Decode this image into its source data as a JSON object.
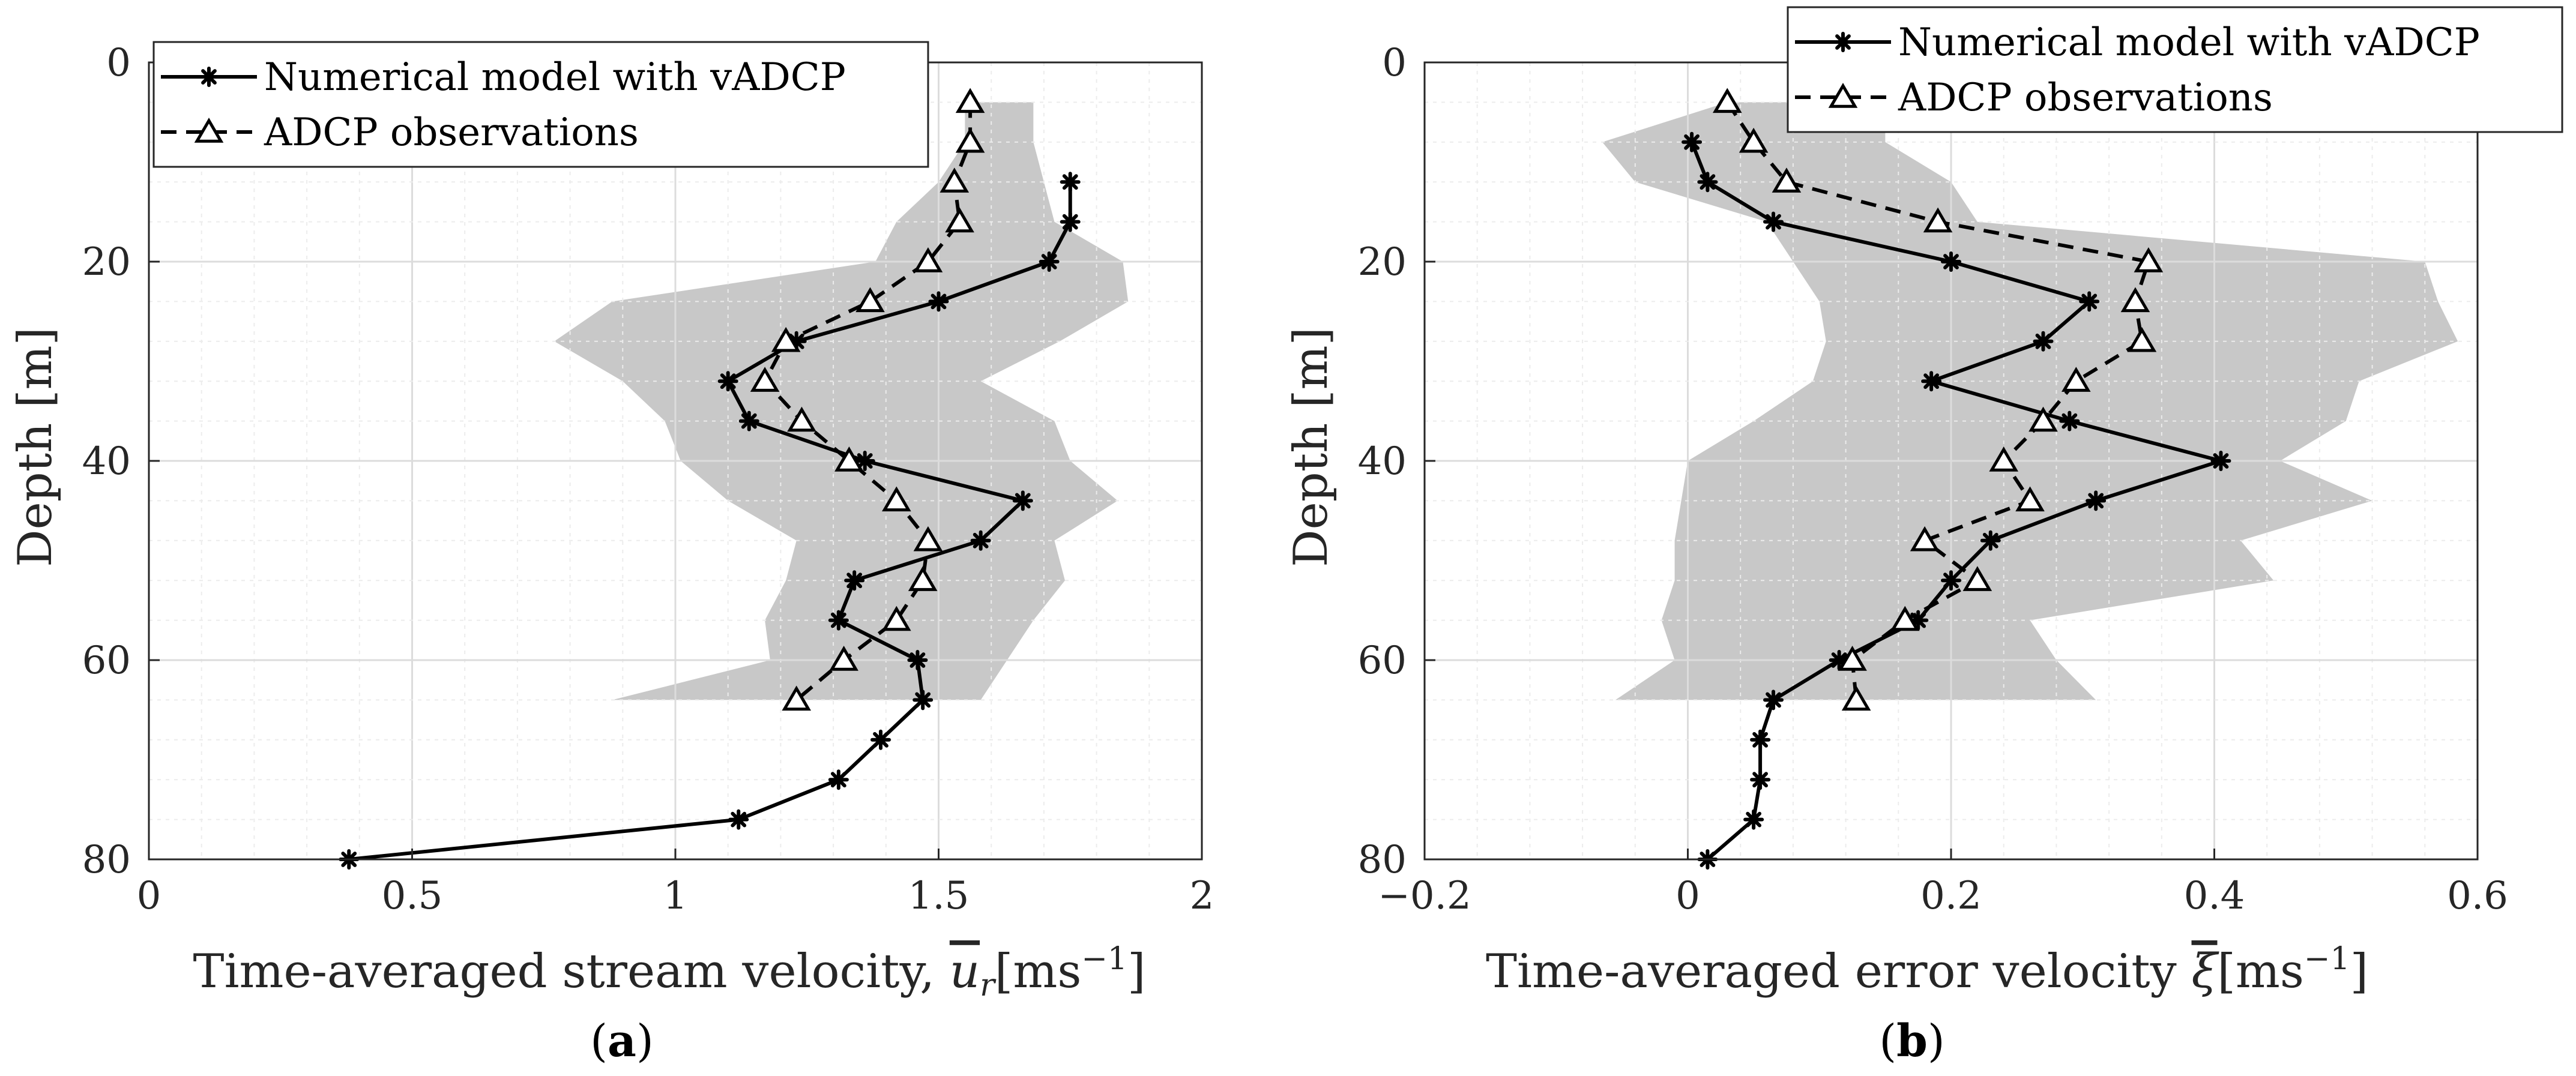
{
  "chart_data": [
    {
      "type": "line",
      "panel_label": {
        "open": "(",
        "letter": "a",
        "close": ")"
      },
      "xlabel_main": "Time-averaged stream velocity, ",
      "xlabel_symbol": "u",
      "xlabel_sub": "r",
      "xlabel_unit": "[ms",
      "xlabel_exp": "−1",
      "xlabel_close": "]",
      "ylabel": "Depth [m]",
      "xlim": [
        0,
        2
      ],
      "ylim": [
        0,
        80
      ],
      "y_reversed": true,
      "xticks": [
        0,
        0.5,
        1,
        1.5,
        2
      ],
      "xtick_labels": [
        "0",
        "0.5",
        "1",
        "1.5",
        "2"
      ],
      "yticks": [
        0,
        20,
        40,
        60,
        80
      ],
      "ytick_labels": [
        "0",
        "20",
        "40",
        "60",
        "80"
      ],
      "grid": true,
      "legend_position": "top-left",
      "legend": [
        "Numerical model with vADCP",
        "ADCP observations"
      ],
      "series": [
        {
          "name": "Numerical model with vADCP",
          "style": "solid",
          "marker": "asterisk",
          "x": [
            1.75,
            1.75,
            1.71,
            1.5,
            1.23,
            1.1,
            1.14,
            1.36,
            1.66,
            1.58,
            1.34,
            1.31,
            1.46,
            1.47,
            1.39,
            1.31,
            1.12,
            0.38
          ],
          "y": [
            12,
            16,
            20,
            24,
            28,
            32,
            36,
            40,
            44,
            48,
            52,
            56,
            60,
            64,
            68,
            72,
            76,
            80
          ]
        },
        {
          "name": "ADCP observations",
          "style": "dashed",
          "marker": "triangle",
          "x": [
            1.56,
            1.56,
            1.53,
            1.54,
            1.48,
            1.37,
            1.21,
            1.17,
            1.24,
            1.33,
            1.42,
            1.48,
            1.47,
            1.42,
            1.32,
            1.23
          ],
          "y": [
            4,
            8,
            12,
            16,
            20,
            24,
            28,
            32,
            36,
            40,
            44,
            48,
            52,
            56,
            60,
            64
          ]
        }
      ],
      "shaded_band": {
        "depth": [
          4,
          8,
          12,
          16,
          20,
          24,
          28,
          32,
          36,
          40,
          44,
          48,
          52,
          56,
          60,
          64
        ],
        "lower": [
          1.55,
          1.55,
          1.5,
          1.42,
          1.38,
          0.88,
          0.77,
          0.9,
          0.98,
          1.01,
          1.1,
          1.23,
          1.21,
          1.17,
          1.18,
          0.88
        ],
        "upper": [
          1.68,
          1.68,
          1.7,
          1.72,
          1.85,
          1.86,
          1.73,
          1.58,
          1.72,
          1.75,
          1.84,
          1.72,
          1.74,
          1.68,
          1.63,
          1.58
        ]
      }
    },
    {
      "type": "line",
      "panel_label": {
        "open": "(",
        "letter": "b",
        "close": ")"
      },
      "xlabel_main": "Time-averaged error velocity ",
      "xlabel_symbol": "ξ",
      "xlabel_sub": "",
      "xlabel_unit": "[ms",
      "xlabel_exp": "−1",
      "xlabel_close": "]",
      "ylabel": "Depth [m]",
      "xlim": [
        -0.2,
        0.6
      ],
      "ylim": [
        0,
        80
      ],
      "y_reversed": true,
      "xticks": [
        -0.2,
        0,
        0.2,
        0.4,
        0.6
      ],
      "xtick_labels": [
        "−0.2",
        "0",
        "0.2",
        "0.4",
        "0.6"
      ],
      "yticks": [
        0,
        20,
        40,
        60,
        80
      ],
      "ytick_labels": [
        "0",
        "20",
        "40",
        "60",
        "80"
      ],
      "grid": true,
      "legend_position": "top-right",
      "legend": [
        "Numerical model with vADCP",
        "ADCP observations"
      ],
      "series": [
        {
          "name": "Numerical model with vADCP",
          "style": "solid",
          "marker": "asterisk",
          "x": [
            0.003,
            0.015,
            0.065,
            0.2,
            0.305,
            0.27,
            0.185,
            0.29,
            0.405,
            0.31,
            0.23,
            0.2,
            0.175,
            0.115,
            0.065,
            0.055,
            0.055,
            0.05,
            0.015
          ],
          "y": [
            8,
            12,
            16,
            20,
            24,
            28,
            32,
            36,
            40,
            44,
            48,
            52,
            56,
            60,
            64,
            68,
            72,
            76,
            80
          ]
        },
        {
          "name": "ADCP observations",
          "style": "dashed",
          "marker": "triangle",
          "x": [
            0.03,
            0.05,
            0.075,
            0.19,
            0.35,
            0.34,
            0.345,
            0.295,
            0.27,
            0.24,
            0.26,
            0.18,
            0.22,
            0.165,
            0.125,
            0.128
          ],
          "y": [
            4,
            8,
            12,
            16,
            20,
            24,
            28,
            32,
            36,
            40,
            44,
            48,
            52,
            56,
            60,
            64
          ]
        }
      ],
      "shaded_band": {
        "depth": [
          4,
          8,
          12,
          16,
          20,
          24,
          28,
          32,
          36,
          40,
          44,
          48,
          52,
          56,
          60,
          64
        ],
        "lower": [
          0.03,
          -0.065,
          -0.04,
          0.06,
          0.08,
          0.1,
          0.105,
          0.095,
          0.05,
          0.0,
          -0.005,
          -0.01,
          -0.01,
          -0.02,
          -0.01,
          -0.055
        ],
        "upper": [
          0.15,
          0.15,
          0.2,
          0.22,
          0.56,
          0.57,
          0.585,
          0.51,
          0.5,
          0.45,
          0.52,
          0.42,
          0.445,
          0.26,
          0.28,
          0.31
        ]
      }
    }
  ]
}
